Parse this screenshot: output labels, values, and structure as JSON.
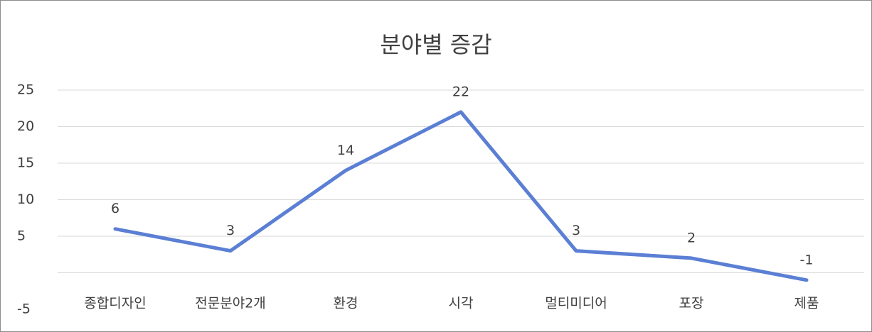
{
  "chart_data": {
    "type": "line",
    "title": "분야별 증감",
    "categories": [
      "종합디자인",
      "전문분야2개",
      "환경",
      "시각",
      "멀티미디어",
      "포장",
      "제품"
    ],
    "values": [
      6,
      3,
      14,
      22,
      3,
      2,
      -1
    ],
    "color": "#5b7fd4",
    "ylim": [
      -5,
      25
    ],
    "yticks": [
      -5,
      5,
      10,
      15,
      20,
      25
    ],
    "grid": true
  }
}
